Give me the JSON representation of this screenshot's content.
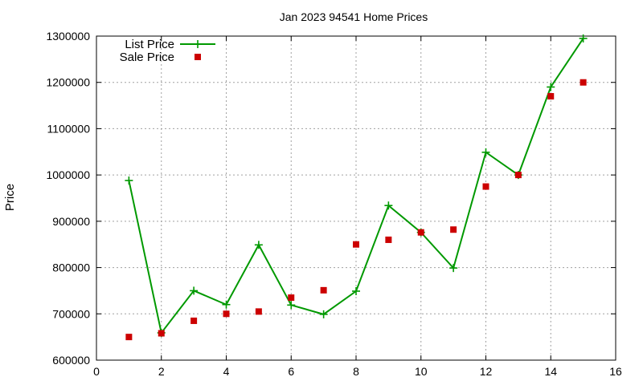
{
  "chart_data": {
    "type": "scatter",
    "title": "Jan 2023 94541 Home Prices",
    "xlabel": "",
    "ylabel": "Price",
    "xlim": [
      0,
      16
    ],
    "ylim": [
      600000,
      1300000
    ],
    "xticks": [
      0,
      2,
      4,
      6,
      8,
      10,
      12,
      14,
      16
    ],
    "yticks": [
      600000,
      700000,
      800000,
      900000,
      1000000,
      1100000,
      1200000,
      1300000
    ],
    "xtick_labels": [
      "0",
      "2",
      "4",
      "6",
      "8",
      "10",
      "12",
      "14",
      "16"
    ],
    "ytick_labels": [
      "600000",
      "700000",
      "800000",
      "900000",
      "1000000",
      "1100000",
      "1200000",
      "1300000"
    ],
    "grid": true,
    "legend_position": "top-left",
    "series": [
      {
        "name": "List Price",
        "style": "line-with-plus-markers",
        "color": "#009900",
        "x": [
          1,
          2,
          3,
          4,
          5,
          6,
          7,
          8,
          9,
          10,
          11,
          12,
          13,
          14,
          15
        ],
        "y": [
          988000,
          659000,
          750000,
          720000,
          849000,
          719000,
          699000,
          749000,
          934000,
          876000,
          799000,
          1049000,
          1000000,
          1190000,
          1295000
        ]
      },
      {
        "name": "Sale Price",
        "style": "square-markers",
        "color": "#cc0000",
        "x": [
          1,
          2,
          3,
          4,
          5,
          6,
          7,
          8,
          9,
          10,
          11,
          12,
          13,
          14,
          15
        ],
        "y": [
          650000,
          658000,
          685000,
          700000,
          705000,
          735000,
          751000,
          850000,
          860000,
          876000,
          882000,
          975000,
          1000000,
          1170000,
          1200000
        ]
      }
    ]
  }
}
